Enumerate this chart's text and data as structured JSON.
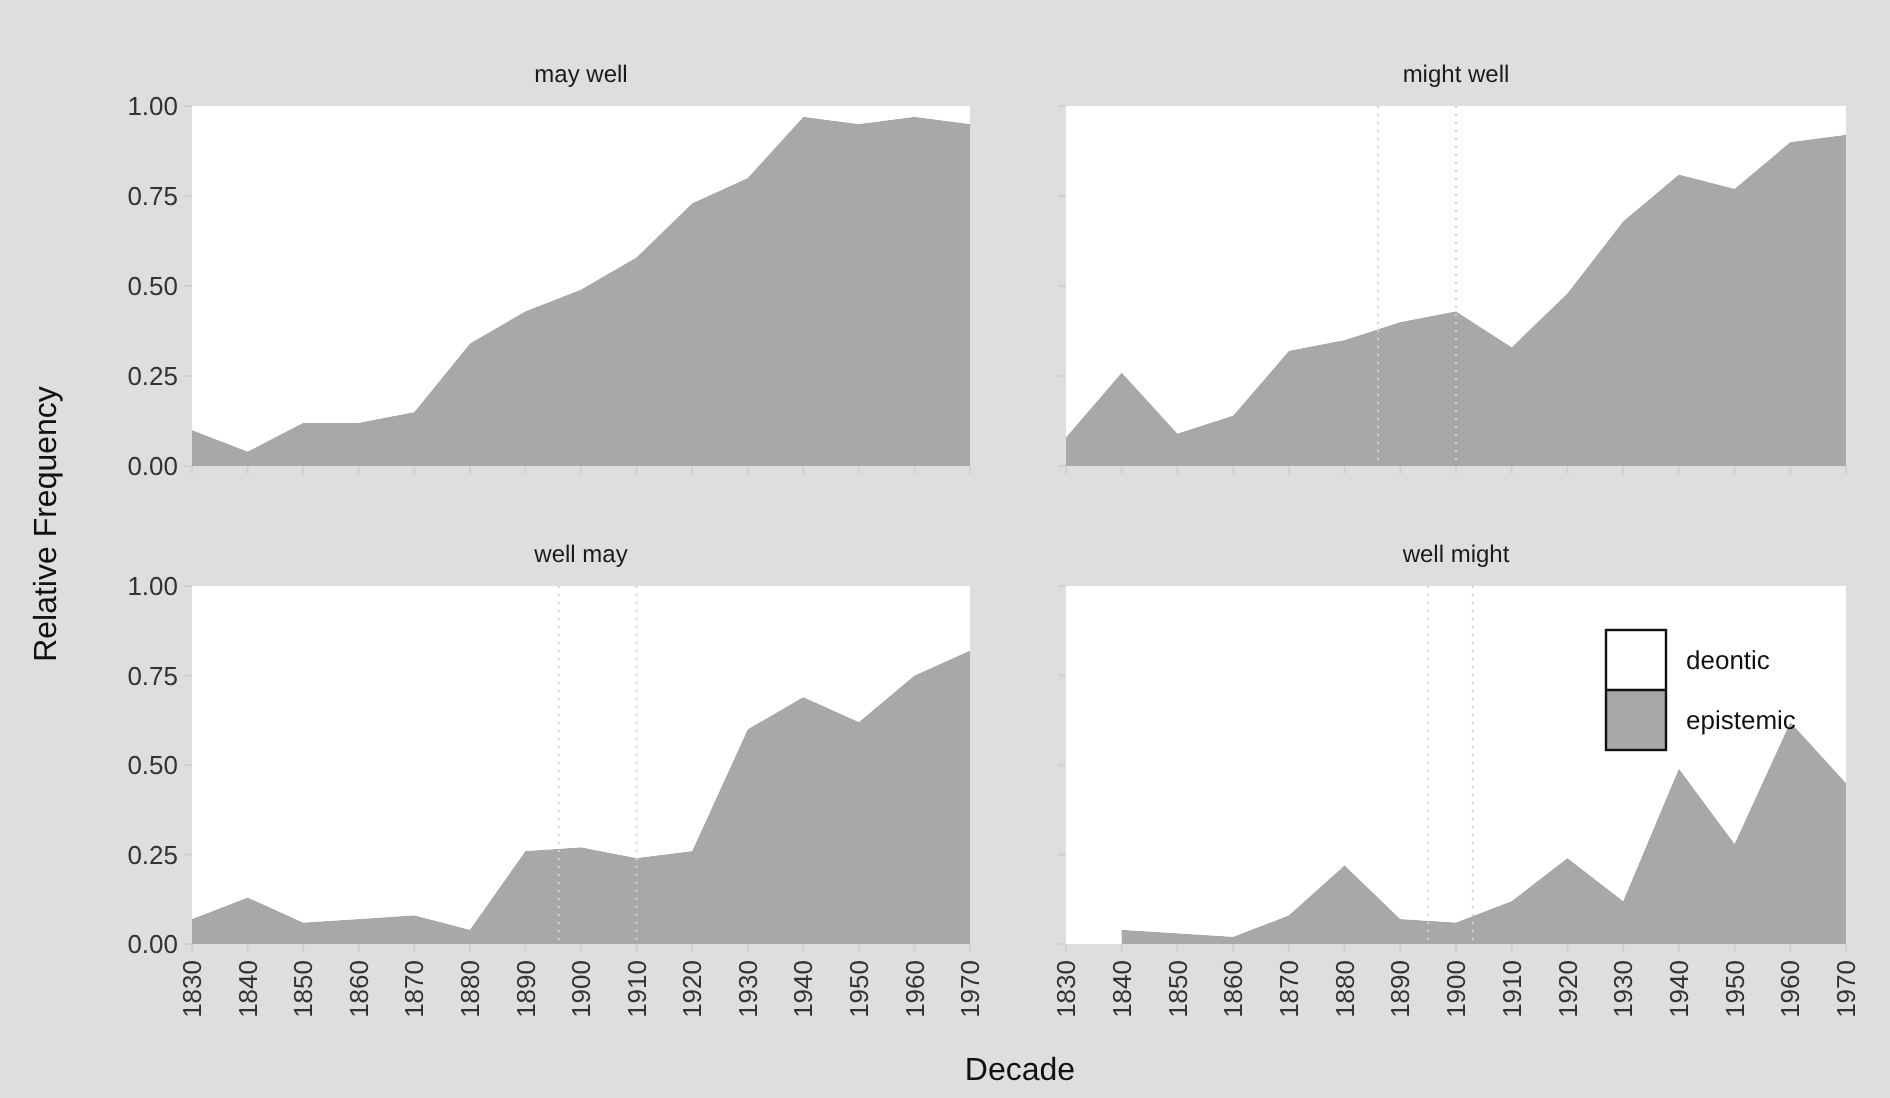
{
  "chart_data": [
    {
      "type": "area",
      "title": "may well",
      "ylabel": "Relative Frequency",
      "x": [
        1830,
        1840,
        1850,
        1860,
        1870,
        1880,
        1890,
        1900,
        1910,
        1920,
        1930,
        1940,
        1950,
        1960,
        1970
      ],
      "stacked": true,
      "xlim": [
        1830,
        1970
      ],
      "ylim": [
        0,
        1
      ],
      "xticks": [
        1830,
        1840,
        1850,
        1860,
        1870,
        1880,
        1890,
        1900,
        1910,
        1920,
        1930,
        1940,
        1950,
        1960,
        1970
      ],
      "yticks": [
        {
          "value": 0,
          "label": "0.00"
        },
        {
          "value": 0.25,
          "label": "0.25"
        },
        {
          "value": 0.5,
          "label": "0.50"
        },
        {
          "value": 0.75,
          "label": "0.75"
        },
        {
          "value": 1,
          "label": "1.00"
        }
      ],
      "tick_labels": "y",
      "legend": false,
      "series": [
        {
          "color": "#a8a8a8",
          "values": [
            0.1,
            0.04,
            0.12,
            0.12,
            0.15,
            0.34,
            0.43,
            0.49,
            0.58,
            0.73,
            0.8,
            0.97,
            0.95,
            0.97,
            0.95
          ]
        },
        {
          "color": "#ffffff",
          "values": [
            0.9,
            0.96,
            0.88,
            0.88,
            0.85,
            0.66,
            0.57,
            0.51,
            0.42,
            0.27,
            0.2,
            0.03,
            0.05,
            0.03,
            0.05
          ]
        }
      ]
    },
    {
      "type": "area",
      "title": "might well",
      "x": [
        1830,
        1840,
        1850,
        1860,
        1870,
        1880,
        1890,
        1900,
        1910,
        1920,
        1930,
        1940,
        1950,
        1960,
        1970
      ],
      "stacked": true,
      "xlim": [
        1830,
        1970
      ],
      "ylim": [
        0,
        1
      ],
      "xticks": [
        1830,
        1840,
        1850,
        1860,
        1870,
        1880,
        1890,
        1900,
        1910,
        1920,
        1930,
        1940,
        1950,
        1960,
        1970
      ],
      "yticks": [
        0,
        0.25,
        0.5,
        0.75,
        1
      ],
      "tick_labels": false,
      "legend": false,
      "ref_lines": [
        {
          "axis": "x",
          "value": 1886,
          "color": "#d4d4d4",
          "line_style": "dotted"
        },
        {
          "axis": "x",
          "value": 1900,
          "color": "#d4d4d4",
          "line_style": "dotted"
        }
      ],
      "series": [
        {
          "color": "#a8a8a8",
          "values": [
            0.08,
            0.26,
            0.09,
            0.14,
            0.32,
            0.35,
            0.4,
            0.43,
            0.33,
            0.48,
            0.68,
            0.81,
            0.77,
            0.9,
            0.92
          ]
        },
        {
          "color": "#ffffff",
          "values": [
            0.92,
            0.74,
            0.91,
            0.86,
            0.68,
            0.65,
            0.6,
            0.57,
            0.67,
            0.52,
            0.32,
            0.19,
            0.23,
            0.1,
            0.08
          ]
        }
      ]
    },
    {
      "type": "area",
      "title": "well may",
      "x": [
        1830,
        1840,
        1850,
        1860,
        1870,
        1880,
        1890,
        1900,
        1910,
        1920,
        1930,
        1940,
        1950,
        1960,
        1970
      ],
      "stacked": true,
      "xlim": [
        1830,
        1970
      ],
      "ylim": [
        0,
        1
      ],
      "xticks": [
        1830,
        1840,
        1850,
        1860,
        1870,
        1880,
        1890,
        1900,
        1910,
        1920,
        1930,
        1940,
        1950,
        1960,
        1970
      ],
      "yticks": [
        {
          "value": 0,
          "label": "0.00"
        },
        {
          "value": 0.25,
          "label": "0.25"
        },
        {
          "value": 0.5,
          "label": "0.50"
        },
        {
          "value": 0.75,
          "label": "0.75"
        },
        {
          "value": 1,
          "label": "1.00"
        }
      ],
      "legend": false,
      "ref_lines": [
        {
          "axis": "x",
          "value": 1896,
          "color": "#d4d4d4",
          "line_style": "dotted"
        },
        {
          "axis": "x",
          "value": 1910,
          "color": "#d4d4d4",
          "line_style": "dotted"
        }
      ],
      "series": [
        {
          "color": "#a8a8a8",
          "values": [
            0.07,
            0.13,
            0.06,
            0.07,
            0.08,
            0.04,
            0.26,
            0.27,
            0.24,
            0.26,
            0.6,
            0.69,
            0.62,
            0.75,
            0.82
          ]
        },
        {
          "color": "#ffffff",
          "values": [
            0.93,
            0.87,
            0.94,
            0.93,
            0.92,
            0.96,
            0.74,
            0.73,
            0.76,
            0.74,
            0.4,
            0.31,
            0.38,
            0.25,
            0.18
          ]
        }
      ]
    },
    {
      "type": "area",
      "title": "well might",
      "xlabel": "Decade",
      "x": [
        1840,
        1850,
        1860,
        1870,
        1880,
        1890,
        1900,
        1910,
        1920,
        1930,
        1940,
        1950,
        1960,
        1970
      ],
      "stacked": true,
      "xlim": [
        1830,
        1970
      ],
      "ylim": [
        0,
        1
      ],
      "xticks": [
        1830,
        1840,
        1850,
        1860,
        1870,
        1880,
        1890,
        1900,
        1910,
        1920,
        1930,
        1940,
        1950,
        1960,
        1970
      ],
      "yticks": [
        0,
        0.25,
        0.5,
        0.75,
        1
      ],
      "tick_labels": "x",
      "legend": "top right",
      "ref_lines": [
        {
          "axis": "x",
          "value": 1895,
          "color": "#d4d4d4",
          "line_style": "dotted"
        },
        {
          "axis": "x",
          "value": 1903,
          "color": "#d4d4d4",
          "line_style": "dotted"
        }
      ],
      "series": [
        {
          "name": "epistemic",
          "color": "#a8a8a8",
          "values": [
            0.04,
            0.03,
            0.02,
            0.08,
            0.22,
            0.07,
            0.06,
            0.12,
            0.24,
            0.12,
            0.49,
            0.28,
            0.62,
            0.45
          ]
        },
        {
          "name": "deontic",
          "color": "#ffffff",
          "values": [
            0.96,
            0.97,
            0.98,
            0.92,
            0.78,
            0.93,
            0.94,
            0.88,
            0.76,
            0.88,
            0.51,
            0.72,
            0.38,
            0.55
          ]
        }
      ]
    }
  ]
}
